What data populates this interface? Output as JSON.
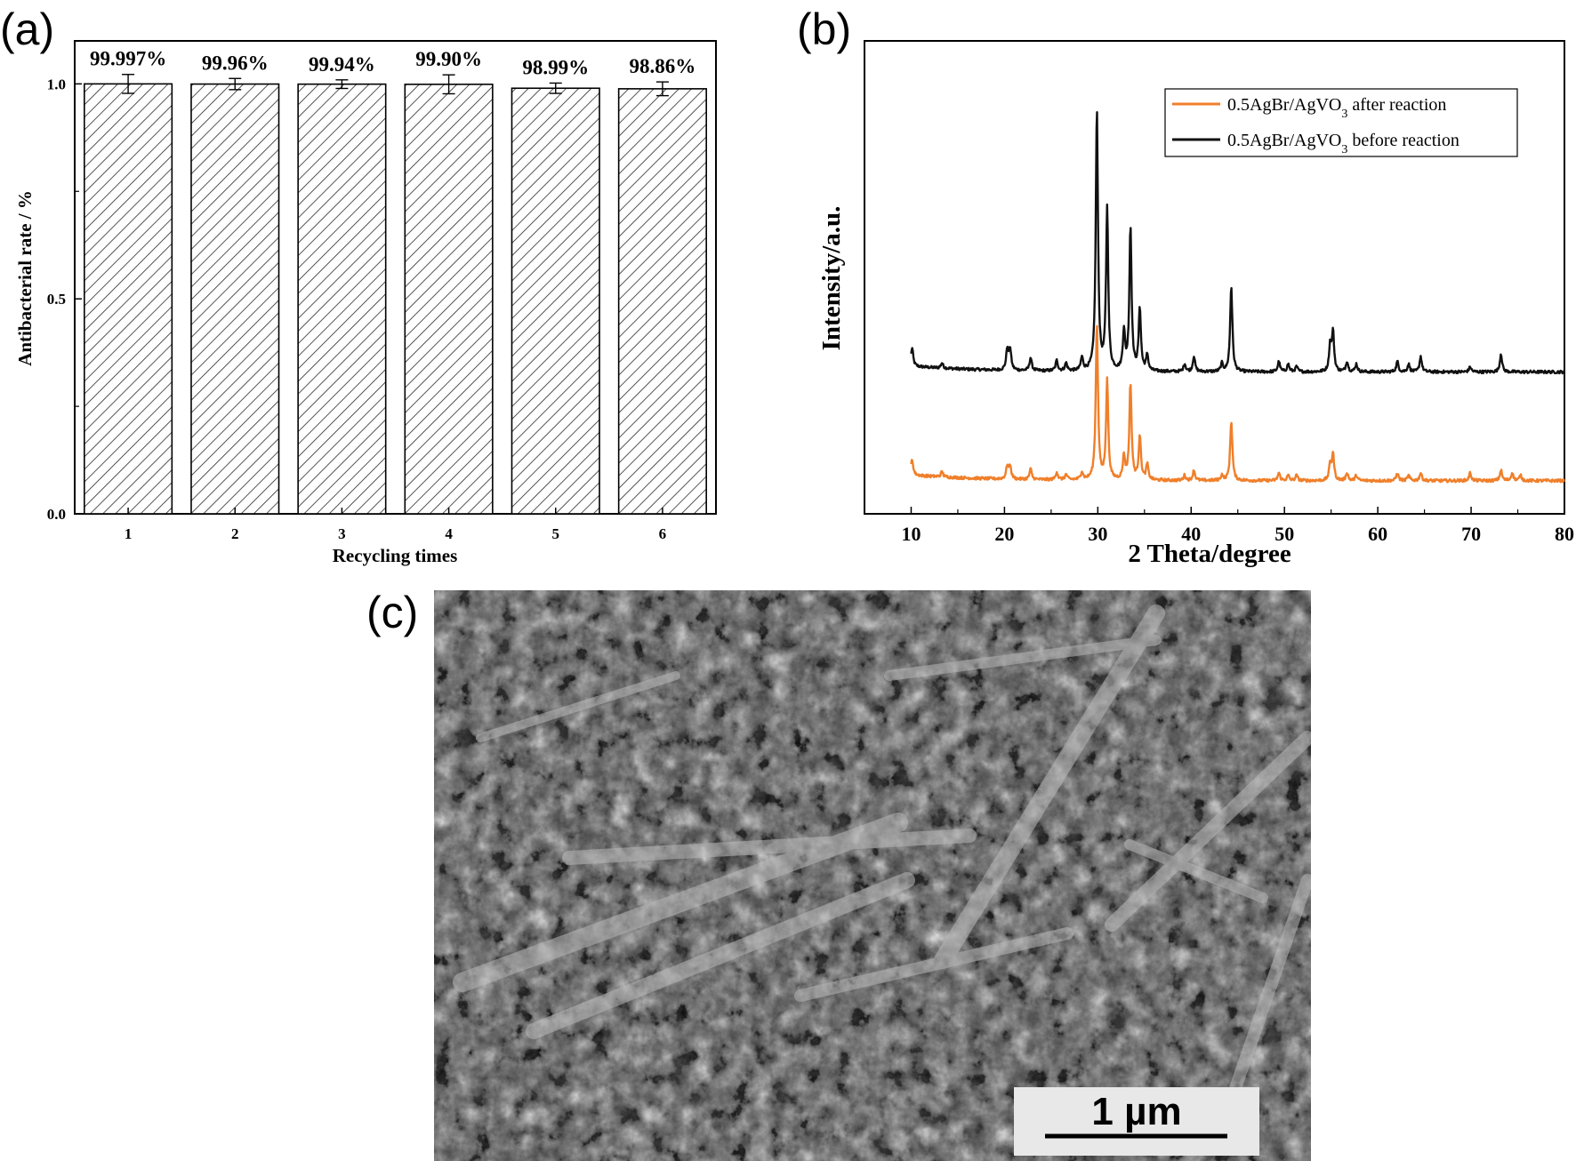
{
  "panel_labels": {
    "a": "(a)",
    "b": "(b)",
    "c": "(c)"
  },
  "colors": {
    "after": "#f07f2a",
    "before": "#111111",
    "axis": "#000000",
    "scalebar_bg": "#e8e8e8"
  },
  "chart_data": [
    {
      "type": "bar",
      "categories": [
        "1",
        "2",
        "3",
        "4",
        "5",
        "6"
      ],
      "values": [
        0.99997,
        0.9996,
        0.9994,
        0.999,
        0.9899,
        0.9886
      ],
      "errors": [
        0.022,
        0.013,
        0.01,
        0.022,
        0.012,
        0.016
      ],
      "data_labels": [
        "99.997%",
        "99.96%",
        "99.94%",
        "99.90%",
        "98.99%",
        "98.86%"
      ],
      "ylabel": "Antibacterial rate / %",
      "xlabel": "Recycling times",
      "ylim": [
        0,
        1.1
      ],
      "yticks": [
        "0.0",
        "0.5",
        "1.0"
      ],
      "fill": "hatched"
    },
    {
      "type": "line",
      "xlabel": "2 Theta/degree",
      "ylabel": "Intensity/a.u.",
      "xlim": [
        5,
        80
      ],
      "xticks": [
        "10",
        "20",
        "30",
        "40",
        "50",
        "60",
        "70",
        "80"
      ],
      "legend_position": "top-right",
      "baselines": {
        "before": 0.7,
        "after": 0.93
      },
      "series": [
        {
          "name": "0.5AgBr/AgVO3 after reaction",
          "legend_main": "0.5AgBr/AgVO",
          "legend_sub": "3",
          "legend_tail": " after reaction",
          "peaks": [
            [
              10.1,
              6
            ],
            [
              13.3,
              2
            ],
            [
              20.3,
              5
            ],
            [
              20.6,
              5
            ],
            [
              22.8,
              4
            ],
            [
              25.6,
              3
            ],
            [
              26.6,
              2
            ],
            [
              28.3,
              3
            ],
            [
              29.9,
              60
            ],
            [
              31.0,
              38
            ],
            [
              32.8,
              9
            ],
            [
              33.5,
              37
            ],
            [
              34.5,
              17
            ],
            [
              35.3,
              6
            ],
            [
              39.3,
              2
            ],
            [
              40.3,
              4
            ],
            [
              43.3,
              2
            ],
            [
              44.3,
              23
            ],
            [
              49.4,
              3
            ],
            [
              50.4,
              2
            ],
            [
              51.3,
              2
            ],
            [
              54.9,
              6
            ],
            [
              55.2,
              10
            ],
            [
              56.7,
              3
            ],
            [
              57.7,
              2
            ],
            [
              62.1,
              3
            ],
            [
              63.3,
              2
            ],
            [
              64.6,
              3
            ],
            [
              69.9,
              3
            ],
            [
              73.2,
              4
            ],
            [
              74.4,
              3
            ],
            [
              75.3,
              2
            ]
          ]
        },
        {
          "name": "0.5AgBr/AgVO3 before reaction",
          "legend_main": "0.5AgBr/AgVO",
          "legend_sub": "3",
          "legend_tail": " before reaction",
          "peaks": [
            [
              10.1,
              7
            ],
            [
              13.3,
              2
            ],
            [
              20.3,
              8
            ],
            [
              20.6,
              8
            ],
            [
              22.8,
              5
            ],
            [
              25.6,
              4
            ],
            [
              26.6,
              3
            ],
            [
              28.3,
              5
            ],
            [
              29.9,
              100
            ],
            [
              31.0,
              62
            ],
            [
              32.8,
              15
            ],
            [
              33.5,
              55
            ],
            [
              34.5,
              24
            ],
            [
              35.3,
              6
            ],
            [
              39.3,
              3
            ],
            [
              40.3,
              6
            ],
            [
              43.3,
              3
            ],
            [
              44.3,
              33
            ],
            [
              49.4,
              4
            ],
            [
              50.4,
              3
            ],
            [
              51.3,
              2
            ],
            [
              54.9,
              10
            ],
            [
              55.2,
              15
            ],
            [
              56.7,
              4
            ],
            [
              57.7,
              3
            ],
            [
              62.1,
              4
            ],
            [
              63.3,
              3
            ],
            [
              64.6,
              6
            ],
            [
              69.9,
              2
            ],
            [
              73.2,
              7
            ]
          ]
        }
      ]
    }
  ],
  "sem": {
    "scalebar_text": "1 µm"
  }
}
